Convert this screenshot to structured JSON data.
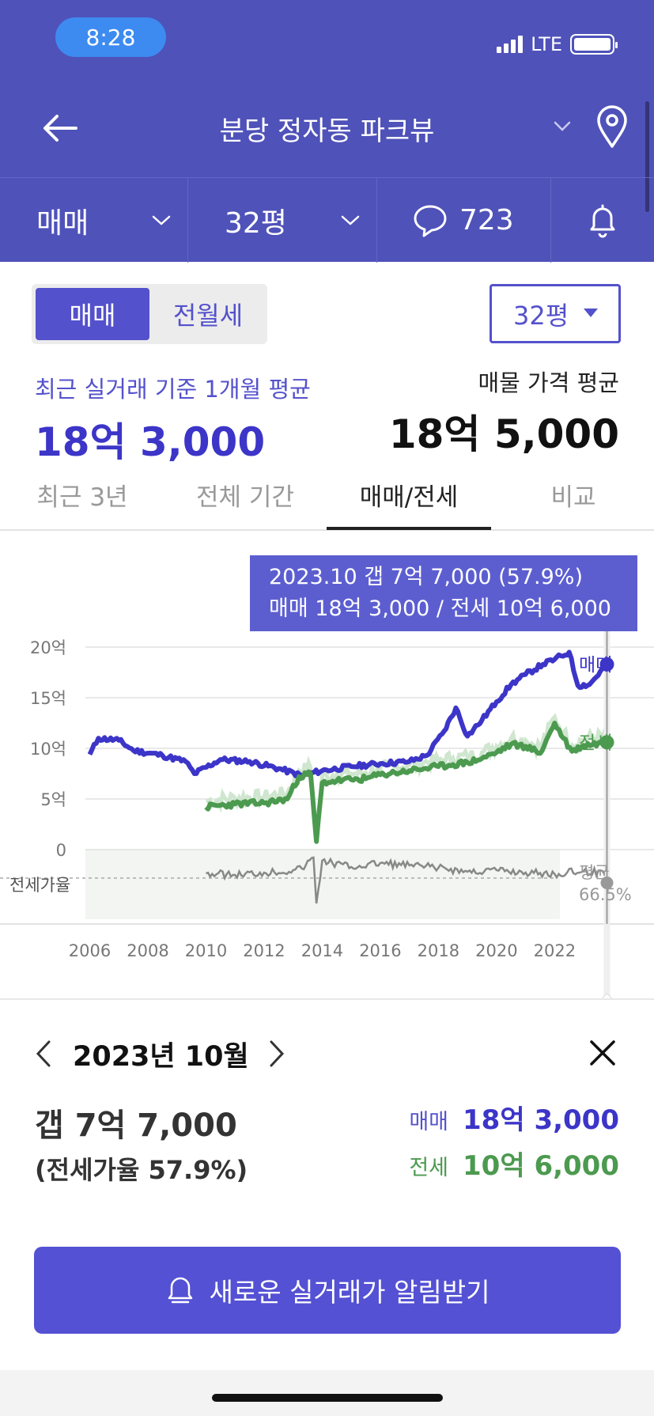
{
  "status_bar": {
    "time": "8:28",
    "network": "LTE"
  },
  "header": {
    "title": "분당 정자동 파크뷰",
    "filters": {
      "deal_type": "매매",
      "size": "32평",
      "comment_count": "723"
    }
  },
  "toggle": {
    "active": "매매",
    "inactive": "전월세"
  },
  "size_select": {
    "value": "32평"
  },
  "summary": {
    "avg_label": "최근 실거래 기준 1개월 평균",
    "avg_value": "18억 3,000",
    "listing_label": "매물 가격 평균",
    "listing_value": "18억 5,000"
  },
  "tabs": [
    {
      "label": "최근 3년"
    },
    {
      "label": "전체 기간"
    },
    {
      "label": "매매/전세"
    },
    {
      "label": "비교"
    }
  ],
  "tooltip": {
    "line1": "2023.10  갭 7억 7,000 (57.9%)",
    "line2": "매매 18억 3,000 / 전세 10억 6,000"
  },
  "chart_data": {
    "type": "line",
    "x_ticks": [
      "2006",
      "2008",
      "2010",
      "2012",
      "2014",
      "2016",
      "2018",
      "2020",
      "2022"
    ],
    "y_ticks": [
      "20억",
      "15억",
      "10억",
      "5억",
      "0"
    ],
    "ylim": [
      0,
      20
    ],
    "series": [
      {
        "name": "매매",
        "color": "#3c35c8",
        "unit": "억",
        "x": [
          2006.0,
          2006.3,
          2007.0,
          2007.5,
          2008.5,
          2009.3,
          2009.6,
          2010.5,
          2011.5,
          2012.5,
          2013.3,
          2014.0,
          2015.0,
          2016.0,
          2017.0,
          2017.6,
          2018.2,
          2018.6,
          2019.0,
          2019.5,
          2020.0,
          2020.5,
          2021.0,
          2021.6,
          2022.0,
          2022.5,
          2022.8,
          2023.2,
          2023.8
        ],
        "values": [
          9.4,
          11,
          10.8,
          9.8,
          9.3,
          8.7,
          7.5,
          8.9,
          8.7,
          8.0,
          7.3,
          7.8,
          8.2,
          8.5,
          8.7,
          9.3,
          11.7,
          14.0,
          11.2,
          12.8,
          14.6,
          16.3,
          17.3,
          18.3,
          18.8,
          19.5,
          16.2,
          16.3,
          18.3
        ]
      },
      {
        "name": "전세",
        "color": "#4c9a4f",
        "unit": "억",
        "x": [
          2010.0,
          2011.0,
          2012.0,
          2012.8,
          2013.2,
          2013.6,
          2013.8,
          2014.0,
          2014.5,
          2015.0,
          2015.5,
          2016.0,
          2016.5,
          2017.0,
          2017.5,
          2018.0,
          2018.5,
          2019.0,
          2019.5,
          2020.0,
          2020.5,
          2021.0,
          2021.5,
          2022.0,
          2022.3,
          2022.6,
          2023.0,
          2023.8
        ],
        "values": [
          4.2,
          4.5,
          4.6,
          5.0,
          7.2,
          7.5,
          0.8,
          6.6,
          6.8,
          6.9,
          7.0,
          7.4,
          7.6,
          7.8,
          8.0,
          8.2,
          8.4,
          8.6,
          9.0,
          9.6,
          10.4,
          10.2,
          9.5,
          12.5,
          11.0,
          9.7,
          10.3,
          10.6
        ]
      }
    ],
    "ratio_series": {
      "name": "전세가율",
      "color": "#888888",
      "x": [
        2010.0,
        2011.0,
        2012.0,
        2013.0,
        2013.3,
        2013.7,
        2013.8,
        2014.0,
        2015.0,
        2016.0,
        2017.0,
        2018.0,
        2019.0,
        2020.0,
        2021.0,
        2022.0,
        2023.0,
        2023.8
      ],
      "average": "66.5%"
    },
    "ratio_axis_label": "전세가율",
    "average_label": "평균",
    "average_value": "66.5%",
    "selected_x": 2023.8,
    "grid": true
  },
  "detail": {
    "month": "2023년 10월",
    "gap_value": "갭 7억 7,000",
    "ratio": "(전세가율 57.9%)",
    "sale_label": "매매",
    "sale_value": "18억 3,000",
    "lease_label": "전세",
    "lease_value": "10억 6,000"
  },
  "cta": {
    "label": "새로운 실거래가 알림받기"
  }
}
